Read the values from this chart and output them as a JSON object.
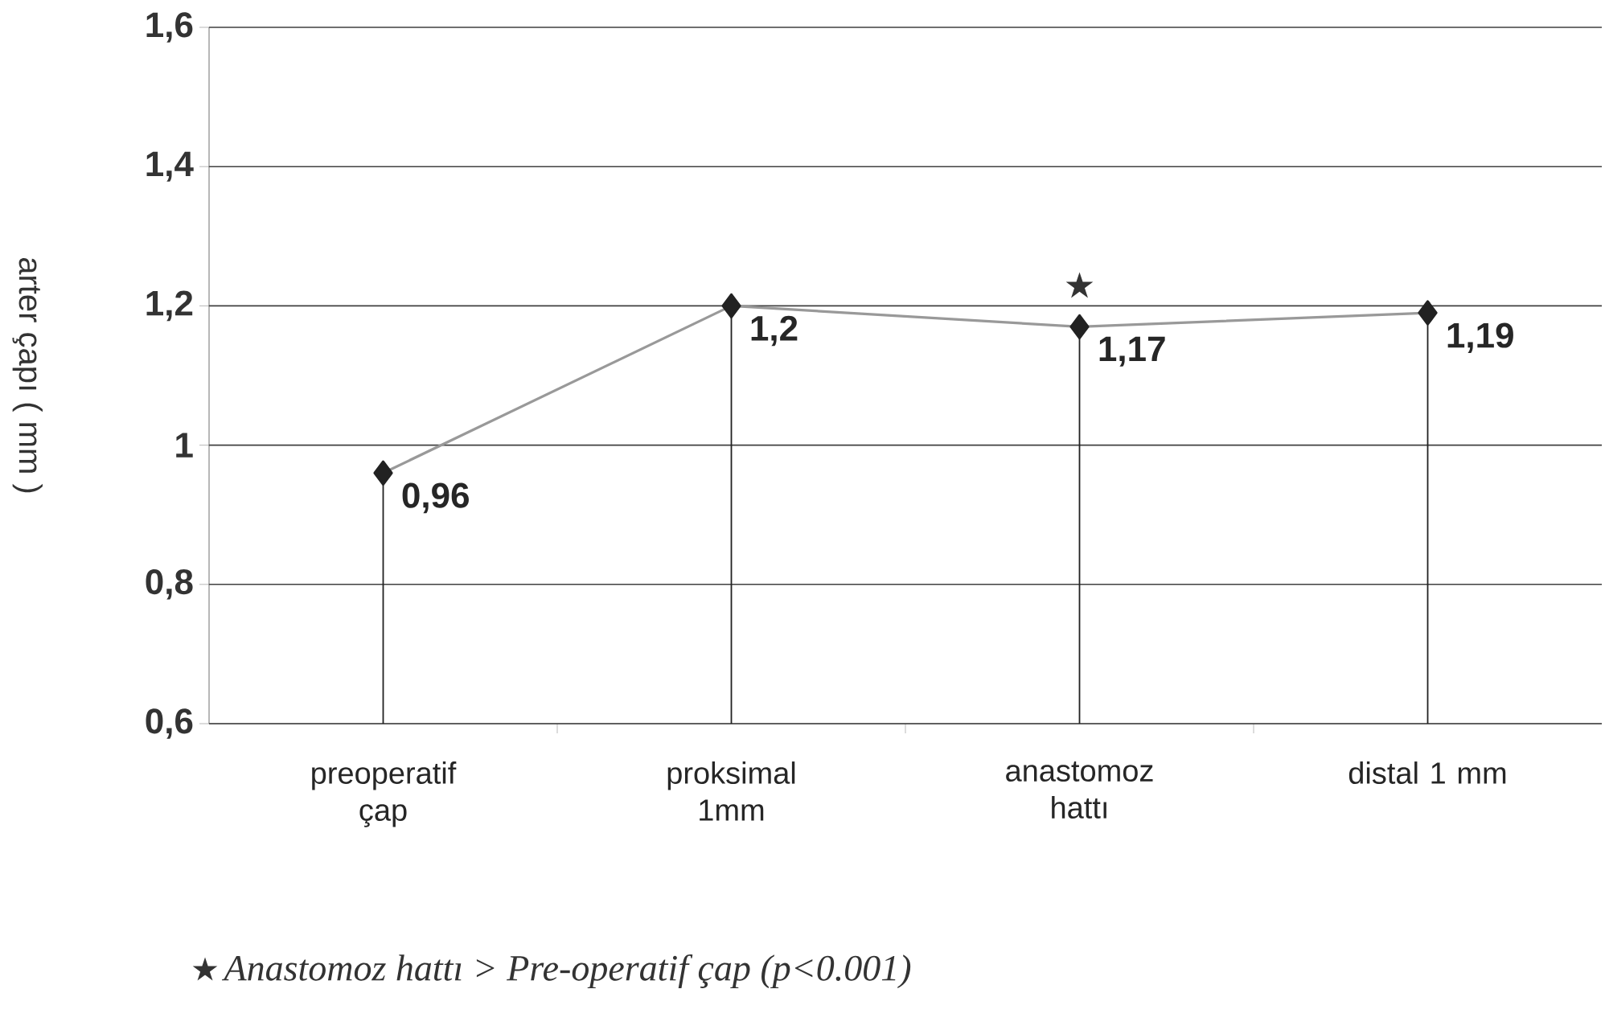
{
  "chart_data": {
    "type": "line",
    "ylabel": "arter çapı ( mm )",
    "categories": [
      "preoperatif çap",
      "proksimal 1mm",
      "anastomoz hattı",
      "distal 1 mm"
    ],
    "series": [
      {
        "color": "#222222",
        "values": [
          0.96,
          1.2,
          1.17,
          1.19
        ],
        "value_labels": [
          "0,96",
          "1,2",
          "1,17",
          "1,19"
        ]
      }
    ],
    "ylim": [
      0.6,
      1.6
    ],
    "yticks": [
      {
        "value": 0.6,
        "label": "0,6"
      },
      {
        "value": 0.8,
        "label": "0,8"
      },
      {
        "value": 1,
        "label": "1"
      },
      {
        "value": 1.2,
        "label": "1,2"
      },
      {
        "value": 1.4,
        "label": "1,4"
      },
      {
        "value": 1.6,
        "label": "1,6"
      }
    ],
    "grid": "y",
    "marker": "diamond",
    "annotations": [
      "★",
      "★",
      "Anastomoz hattı > Pre-operatif çap (p<0.001)"
    ]
  }
}
